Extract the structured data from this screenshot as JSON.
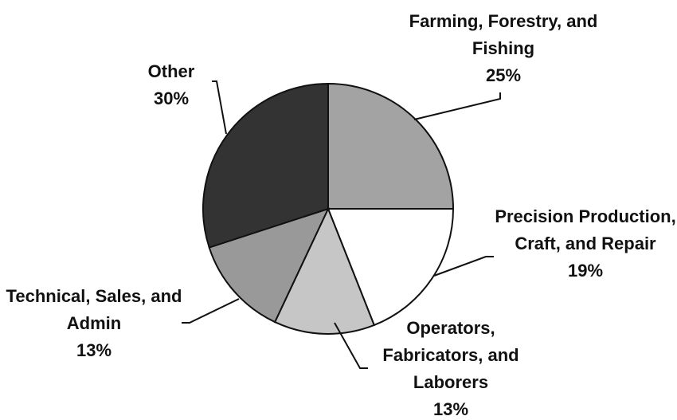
{
  "chart_data": {
    "type": "pie",
    "categories": [
      "Farming, Forestry, and Fishing",
      "Precision Production, Craft, and Repair",
      "Operators, Fabricators, and Laborers",
      "Technical, Sales, and Admin",
      "Other"
    ],
    "values": [
      25,
      19,
      13,
      13,
      30
    ],
    "value_labels": [
      "25%",
      "19%",
      "13%",
      "13%",
      "30%"
    ],
    "colors": [
      "#a3a3a3",
      "#ffffff",
      "#c6c6c6",
      "#999999",
      "#333333"
    ]
  }
}
